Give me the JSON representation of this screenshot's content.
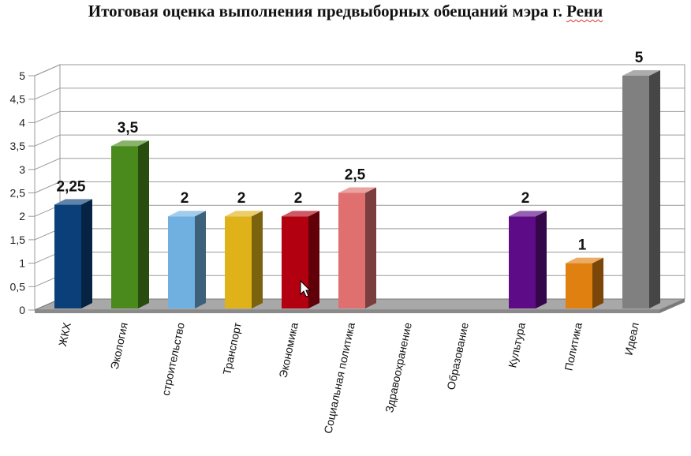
{
  "title_main": "Итоговая оценка выполнения предвыборных обещаний мэра г.",
  "title_tail": "Рени",
  "chart_data": {
    "type": "bar",
    "title": "Итоговая оценка выполнения предвыборных обещаний мэра г. Рени",
    "categories": [
      "ЖКХ",
      "Экология",
      "строительство",
      "Транспорт",
      "Экономика",
      "Социальная политика",
      "Здравоохранение",
      "Образование",
      "Культура",
      "Политика",
      "Идеал"
    ],
    "values": [
      2.25,
      3.5,
      2,
      2,
      2,
      2.5,
      null,
      null,
      2,
      1,
      5
    ],
    "data_labels": [
      "2,25",
      "3,5",
      "2",
      "2",
      "2",
      "2,5",
      "",
      "",
      "2",
      "1",
      "5"
    ],
    "colors": [
      "#0b3f7a",
      "#4a8a1c",
      "#6fb0e0",
      "#e0b21a",
      "#b30010",
      "#e07070",
      "#888888",
      "#888888",
      "#5e0b87",
      "#e08010",
      "#808080"
    ],
    "yticks": [
      "0",
      "0,5",
      "1",
      "1,5",
      "2",
      "2,5",
      "3",
      "3,5",
      "4",
      "4,5",
      "5"
    ],
    "ylim": [
      0,
      5
    ],
    "grid": true,
    "legend": "none"
  }
}
